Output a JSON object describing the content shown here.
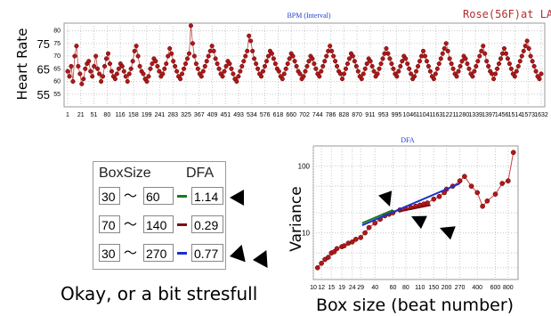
{
  "legend_text": "Rose(56F)at LA",
  "caption": "Okay, or a bit stresfull",
  "dfa_table": {
    "header_box": "BoxSize",
    "header_dfa": "DFA",
    "rows": [
      {
        "from": "30",
        "to": "60",
        "dfa": "1.14",
        "color": "#1a7a1a"
      },
      {
        "from": "70",
        "to": "140",
        "dfa": "0.29",
        "color": "#7a1010"
      },
      {
        "from": "30",
        "to": "270",
        "dfa": "0.77",
        "color": "#1a2fd0"
      }
    ],
    "tilde": "～"
  },
  "colors": {
    "dots": "#b01818",
    "dot_edge": "#5a0000",
    "grid": "#c8c8c8",
    "title": "#2040d0",
    "arrow": "#000000"
  },
  "chart_data": [
    {
      "type": "scatter",
      "title": "BPM (Interval)",
      "ylabel": "Heart Rate",
      "ylim": [
        50,
        83
      ],
      "yticks_small": [
        55,
        60,
        65,
        70,
        75,
        80
      ],
      "yticks_large": [
        55,
        65,
        75
      ],
      "xlim": [
        1,
        1690
      ],
      "xticks": [
        "1",
        "21",
        "51",
        "80",
        "116",
        "158",
        "199",
        "241",
        "283",
        "325",
        "367",
        "409",
        "451",
        "493",
        "534",
        "576",
        "618",
        "660",
        "702",
        "744",
        "786",
        "828",
        "870",
        "911",
        "953",
        "995",
        "1046",
        "1104",
        "1163",
        "1221",
        "1280",
        "1339",
        "1397",
        "1456",
        "1514",
        "1573",
        "1632"
      ],
      "grid": true,
      "series": [
        {
          "values": [
            64,
            62,
            66,
            60,
            70,
            74,
            66,
            63,
            59,
            61,
            65,
            67,
            68,
            64,
            62,
            66,
            70,
            65,
            63,
            60,
            62,
            66,
            69,
            71,
            67,
            64,
            62,
            61,
            63,
            65,
            67,
            66,
            64,
            62,
            60,
            63,
            65,
            68,
            72,
            74,
            70,
            66,
            64,
            63,
            61,
            60,
            62,
            65,
            67,
            69,
            68,
            66,
            64,
            62,
            63,
            65,
            67,
            70,
            73,
            71,
            68,
            66,
            64,
            62,
            61,
            63,
            65,
            67,
            69,
            71,
            82,
            75,
            70,
            67,
            65,
            63,
            62,
            64,
            66,
            68,
            70,
            72,
            74,
            72,
            69,
            67,
            65,
            63,
            62,
            64,
            66,
            68,
            67,
            65,
            63,
            61,
            60,
            62,
            64,
            66,
            68,
            70,
            72,
            78,
            76,
            72,
            69,
            67,
            65,
            63,
            62,
            64,
            66,
            68,
            70,
            72,
            71,
            69,
            67,
            65,
            64,
            62,
            61,
            63,
            65,
            67,
            69,
            71,
            70,
            68,
            66,
            64,
            63,
            61,
            62,
            64,
            66,
            68,
            70,
            69,
            67,
            65,
            63,
            62,
            64,
            66,
            68,
            70,
            72,
            74,
            72,
            70,
            68,
            66,
            64,
            63,
            61,
            63,
            65,
            67,
            69,
            71,
            70,
            68,
            66,
            64,
            62,
            61,
            63,
            65,
            67,
            69,
            68,
            66,
            64,
            62,
            63,
            65,
            67,
            69,
            71,
            73,
            71,
            69,
            67,
            65,
            63,
            62,
            64,
            66,
            68,
            70,
            69,
            67,
            65,
            63,
            61,
            62,
            64,
            66,
            68,
            70,
            72,
            70,
            68,
            66,
            64,
            62,
            61,
            63,
            65,
            67,
            69,
            71,
            73,
            75,
            72,
            69,
            67,
            65,
            63,
            62,
            64,
            66,
            68,
            70,
            69,
            67,
            65,
            63,
            62,
            64,
            66,
            68,
            70,
            72,
            74,
            71,
            68,
            66,
            64,
            63,
            61,
            63,
            65,
            67,
            69,
            71,
            73,
            71,
            69,
            67,
            65,
            63,
            62,
            64,
            66,
            68,
            70,
            72,
            74,
            76,
            73,
            70,
            68,
            66,
            64,
            62,
            61,
            63
          ]
        }
      ]
    },
    {
      "type": "scatter",
      "title": "DFA",
      "xlabel": "Box size (beat number)",
      "ylabel": "Variance",
      "x_scale": "log",
      "y_scale": "log",
      "xlim": [
        10,
        1000
      ],
      "ylim": [
        2,
        200
      ],
      "yticks": [
        10,
        100
      ],
      "xticks": [
        "10",
        "12",
        "15",
        "19",
        "24",
        "29",
        "40",
        "60",
        "80",
        "110",
        "150",
        "200",
        "270",
        "400",
        "600",
        "800"
      ],
      "xtick_values": [
        10,
        12,
        15,
        19,
        24,
        29,
        40,
        60,
        80,
        110,
        150,
        200,
        270,
        400,
        600,
        800
      ],
      "grid": true,
      "series": [
        {
          "x": [
            11,
            12,
            13,
            14,
            15,
            16,
            17,
            19,
            20,
            22,
            24,
            26,
            29,
            32,
            35,
            40,
            45,
            50,
            55,
            60,
            70,
            80,
            90,
            100,
            110,
            120,
            130,
            150,
            170,
            190,
            200,
            230,
            270,
            300,
            350,
            400,
            450,
            500,
            600,
            700,
            800,
            900
          ],
          "y": [
            3,
            3.5,
            4,
            4.3,
            5,
            5.2,
            5.8,
            6.2,
            6.4,
            7,
            7.3,
            8,
            8.5,
            10,
            12,
            14,
            16,
            18,
            19,
            20,
            22,
            23,
            24,
            25,
            26,
            27,
            28,
            32,
            35,
            40,
            45,
            50,
            60,
            70,
            50,
            40,
            25,
            30,
            38,
            55,
            60,
            160
          ]
        },
        {
          "x": [
            30,
            60
          ],
          "y": [
            14,
            22
          ]
        },
        {
          "x": [
            70,
            140
          ],
          "y": [
            21,
            26
          ]
        },
        {
          "x": [
            30,
            270
          ],
          "y": [
            13,
            55
          ]
        }
      ]
    }
  ]
}
